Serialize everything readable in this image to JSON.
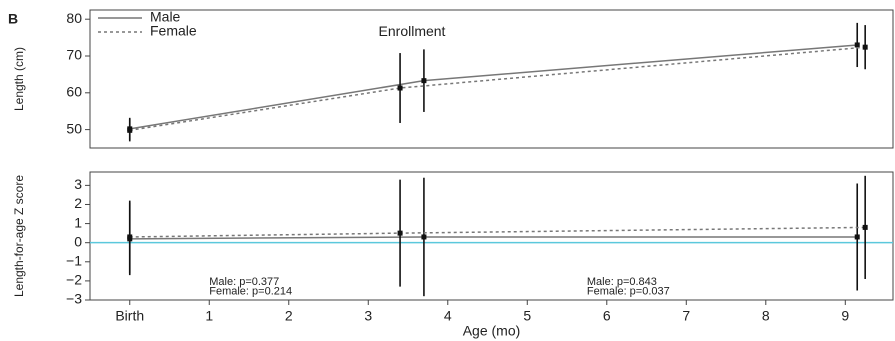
{
  "panel_label": "B",
  "chart_data": [
    {
      "type": "line",
      "ylabel": "Length (cm)",
      "xlim": [
        -0.5,
        9.6
      ],
      "ylim": [
        45,
        82.5
      ],
      "yticks": [
        50,
        60,
        70,
        80
      ],
      "legend": "top-left",
      "annotations": [
        {
          "text": "Enrollment",
          "x": 3.55,
          "y": 76.5
        }
      ],
      "series": [
        {
          "name": "Male",
          "color": "#777777",
          "dash": "solid",
          "x": [
            0,
            3.7,
            9.15
          ],
          "values": [
            50.2,
            63.3,
            73.0
          ],
          "errors": [
            3,
            8.5,
            6
          ]
        },
        {
          "name": "Female",
          "color": "#777777",
          "dash": "dotted",
          "x": [
            0,
            3.4,
            9.25
          ],
          "values": [
            49.8,
            61.3,
            72.4
          ],
          "errors": [
            3,
            9.5,
            6
          ]
        }
      ]
    },
    {
      "type": "line",
      "ylabel": "Length-for-age Z score",
      "xlabel": "Age (mo)",
      "xlim": [
        -0.5,
        9.6
      ],
      "ylim": [
        -3,
        3.7
      ],
      "xticks": [
        {
          "value": 0,
          "label": "Birth"
        },
        1,
        2,
        3,
        4,
        5,
        6,
        7,
        8,
        9
      ],
      "yticks": [
        {
          "value": -3,
          "label": "−3"
        },
        {
          "value": -2,
          "label": "−2"
        },
        {
          "value": -1,
          "label": "−1"
        },
        0,
        1,
        2,
        3
      ],
      "reference_line": {
        "value": 0,
        "color": "#5bc8dc"
      },
      "annotations": [
        {
          "text": "Male: p=0.377",
          "x": 1.0,
          "y": -2.05
        },
        {
          "text": "Female: p=0.214",
          "x": 1.0,
          "y": -2.55
        },
        {
          "text": "Male: p=0.843",
          "x": 5.75,
          "y": -2.05
        },
        {
          "text": "Female: p=0.037",
          "x": 5.75,
          "y": -2.55
        }
      ],
      "series": [
        {
          "name": "Male",
          "color": "#777777",
          "dash": "solid",
          "x": [
            0,
            3.7,
            9.15
          ],
          "values": [
            0.2,
            0.3,
            0.3
          ],
          "errors": [
            1.9,
            3.1,
            2.8
          ]
        },
        {
          "name": "Female",
          "color": "#777777",
          "dash": "dotted",
          "x": [
            0,
            3.4,
            9.25
          ],
          "values": [
            0.3,
            0.5,
            0.8
          ],
          "errors": [
            1.9,
            2.8,
            2.7
          ]
        }
      ]
    }
  ]
}
